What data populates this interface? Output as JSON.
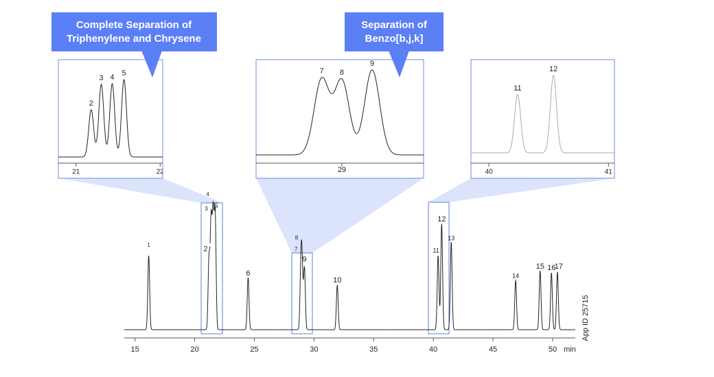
{
  "chart_data": [
    {
      "type": "chromatogram",
      "xlabel": "min",
      "note": "App ID 25715",
      "color": "#222222",
      "xlim": [
        14.1,
        51.9
      ],
      "xticks": [
        15,
        20,
        25,
        30,
        35,
        40,
        45,
        50
      ],
      "peaks": {
        "labels": [
          "1",
          "2",
          "3",
          "4",
          "5",
          "6",
          "7",
          "8",
          "9",
          "10",
          "11",
          "12",
          "13",
          "14",
          "15",
          "16",
          "17"
        ],
        "rt": [
          16.15,
          21.2,
          21.38,
          21.55,
          21.72,
          24.48,
          28.9,
          29.0,
          29.2,
          31.95,
          40.4,
          40.7,
          41.5,
          46.9,
          48.95,
          49.9,
          50.4
        ],
        "heights": [
          108,
          103,
          156,
          163,
          166,
          76,
          81,
          83,
          90,
          65,
          108,
          154,
          128,
          72,
          86,
          83,
          84
        ]
      }
    },
    {
      "type": "chromatogram",
      "annotation": [
        "Complete Separation of",
        "Triphenylene and Chrysene"
      ],
      "color": "#222222",
      "xlim": [
        20.79,
        22.03
      ],
      "xticks": [
        21,
        22
      ],
      "peaks": {
        "labels": [
          "2",
          "3",
          "4",
          "5"
        ],
        "rt": [
          21.18,
          21.3,
          21.43,
          21.57
        ],
        "heights": [
          69,
          106,
          107,
          113
        ]
      }
    },
    {
      "type": "chromatogram",
      "annotation": [
        "Separation of",
        "Benzo[b,j,k]"
      ],
      "color": "#222222",
      "xlim": [
        28.745,
        29.243
      ],
      "xticks": [
        29
      ],
      "peaks": {
        "labels": [
          "7",
          "8",
          "9"
        ],
        "rt": [
          28.94,
          29.0,
          29.09
        ],
        "heights": [
          110,
          108,
          124
        ]
      }
    },
    {
      "type": "chromatogram",
      "color": "#aaaaaa",
      "xlim": [
        39.85,
        41.05
      ],
      "xticks": [
        40,
        41
      ],
      "peaks": {
        "labels": [
          "11",
          "12"
        ],
        "rt": [
          40.24,
          40.54
        ],
        "heights": [
          85,
          113
        ]
      }
    }
  ]
}
